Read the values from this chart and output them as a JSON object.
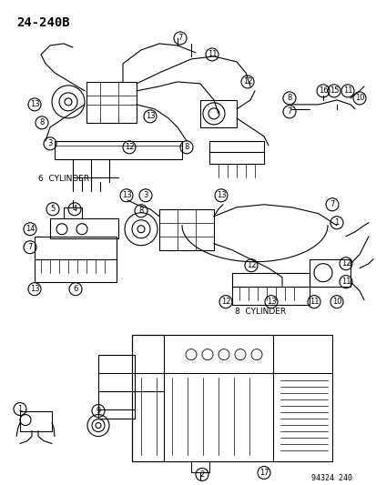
{
  "title": "24-240B",
  "catalog_number": "94324 240",
  "background_color": "#ffffff",
  "line_color": "#000000",
  "text_color": "#000000",
  "label_6cyl": "6  CYLINDER",
  "label_8cyl": "8  CYLINDER",
  "fig_width": 4.14,
  "fig_height": 5.33,
  "dpi": 100
}
